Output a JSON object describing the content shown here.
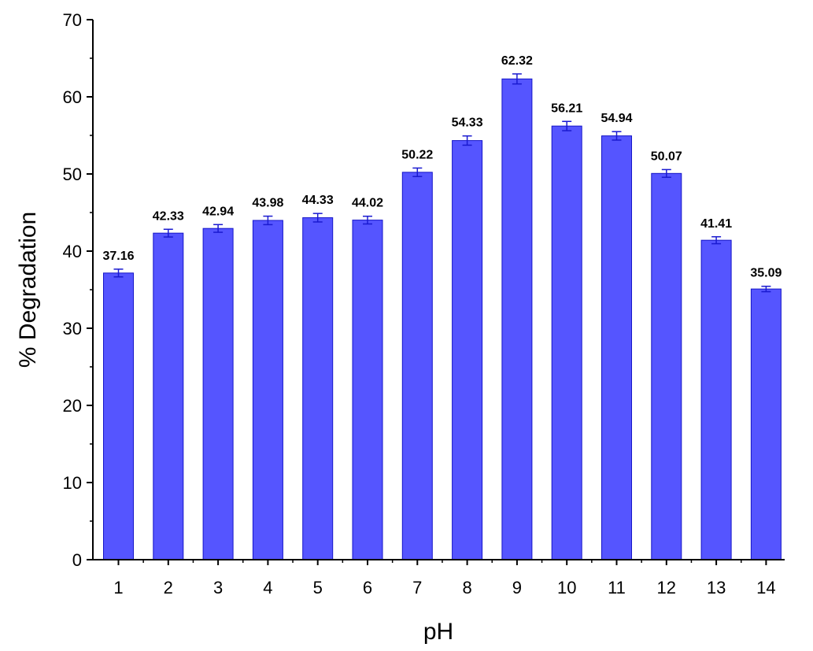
{
  "chart_data": {
    "type": "bar",
    "title": "",
    "xlabel": "pH",
    "ylabel": "% Degradation",
    "categories": [
      "1",
      "2",
      "3",
      "4",
      "5",
      "6",
      "7",
      "8",
      "9",
      "10",
      "11",
      "12",
      "13",
      "14"
    ],
    "values": [
      37.16,
      42.33,
      42.94,
      43.98,
      44.33,
      44.02,
      50.22,
      54.33,
      62.32,
      56.21,
      54.94,
      50.07,
      41.41,
      35.09
    ],
    "data_labels": [
      "37.16",
      "42.33",
      "42.94",
      "43.98",
      "44.33",
      "44.02",
      "50.22",
      "54.33",
      "62.32",
      "56.21",
      "54.94",
      "50.07",
      "41.41",
      "35.09"
    ],
    "error": [
      0.5,
      0.5,
      0.5,
      0.55,
      0.55,
      0.5,
      0.55,
      0.6,
      0.65,
      0.6,
      0.55,
      0.5,
      0.45,
      0.35
    ],
    "ylim": [
      0,
      70
    ],
    "yticks": [
      "0",
      "10",
      "20",
      "30",
      "40",
      "50",
      "60",
      "70"
    ],
    "bar_color": "#5555ff",
    "bar_edge_color": "#1515c8",
    "grid": false,
    "legend": "none"
  }
}
